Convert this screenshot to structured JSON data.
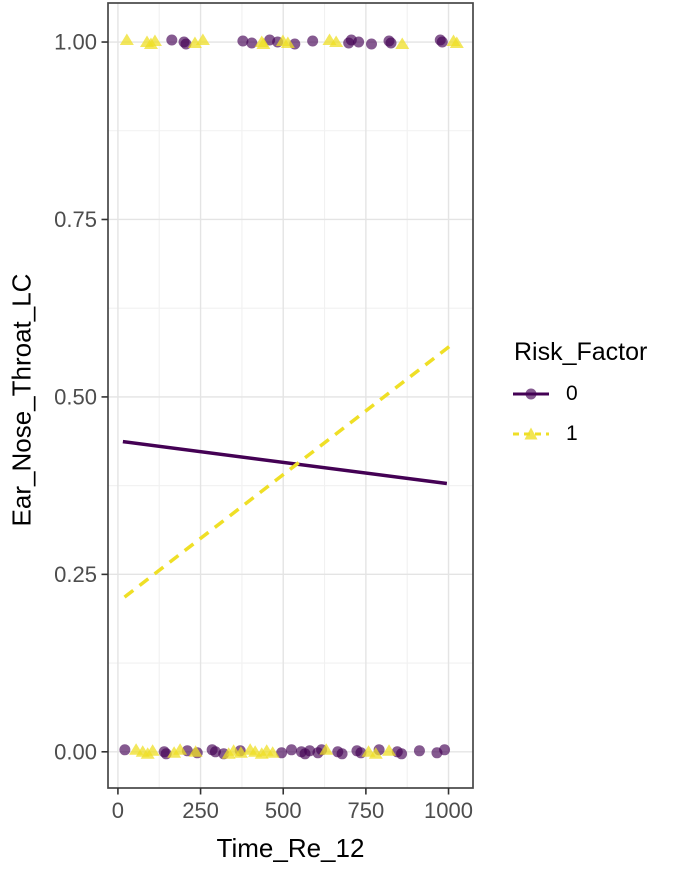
{
  "figure": {
    "background": "#ffffff"
  },
  "chart_data": {
    "type": "scatter",
    "title": "",
    "xlabel": "Time_Re_12",
    "ylabel": "Ear_Nose_Throat_LC",
    "xlim": [
      -30,
      1074
    ],
    "ylim": [
      -0.051,
      1.055
    ],
    "xticks": [
      0,
      250,
      500,
      750,
      1000
    ],
    "xtick_labels": [
      "0",
      "250",
      "500",
      "750",
      "1000"
    ],
    "yticks": [
      0,
      0.25,
      0.5,
      0.75,
      1
    ],
    "ytick_labels": [
      "0.00",
      "0.25",
      "0.50",
      "0.75",
      "1.00"
    ],
    "grid": "major and minor gridlines, light gray, white panel with dark border (ggplot theme_bw)",
    "colors": {
      "risk0": "#440154",
      "risk1": "#EFDF26",
      "axis_text": "#4d4d4d",
      "axis_title": "#000000",
      "panel_border": "#474747",
      "grid_major": "#e4e4e4",
      "grid_minor": "#f1f1f1",
      "tick_mark": "#333333"
    },
    "point_alpha": 0.65,
    "legend": {
      "title": "Risk_Factor",
      "position": "right",
      "entries": [
        {
          "label": "0",
          "color": "#440154",
          "shape": "circle",
          "linetype": "solid"
        },
        {
          "label": "1",
          "color": "#EFDF26",
          "shape": "triangle",
          "linetype": "dashed"
        }
      ]
    },
    "series": [
      {
        "name": "risk0-points-y1",
        "risk": "0",
        "role": "points",
        "shape": "circle",
        "y": 1,
        "x": [
          163,
          200,
          206,
          378,
          405,
          459,
          483,
          535,
          589,
          698,
          706,
          728,
          767,
          820,
          826,
          975,
          981
        ]
      },
      {
        "name": "risk1-points-y1",
        "risk": "1",
        "role": "points",
        "shape": "triangle",
        "y": 1,
        "x": [
          27,
          88,
          100,
          112,
          233,
          257,
          435,
          440,
          499,
          514,
          640,
          660,
          860,
          1015,
          1025
        ]
      },
      {
        "name": "risk0-points-y0",
        "risk": "0",
        "role": "points",
        "shape": "circle",
        "y": 0,
        "x": [
          21,
          140,
          146,
          210,
          240,
          285,
          295,
          320,
          370,
          495,
          525,
          555,
          566,
          580,
          605,
          616,
          665,
          678,
          723,
          735,
          790,
          845,
          858,
          912,
          965,
          988
        ]
      },
      {
        "name": "risk1-points-y0",
        "risk": "1",
        "role": "points",
        "shape": "triangle",
        "y": 0,
        "x": [
          55,
          75,
          90,
          105,
          170,
          188,
          235,
          335,
          350,
          372,
          400,
          415,
          435,
          450,
          468,
          630,
          758,
          780,
          820
        ]
      },
      {
        "name": "risk0-fit-line",
        "risk": "0",
        "role": "line",
        "linetype": "solid",
        "points": [
          [
            15,
            0.437
          ],
          [
            995,
            0.378
          ]
        ]
      },
      {
        "name": "risk1-fit-line",
        "risk": "1",
        "role": "line",
        "linetype": "dashed",
        "points": [
          [
            20,
            0.218
          ],
          [
            1005,
            0.572
          ]
        ]
      }
    ]
  }
}
